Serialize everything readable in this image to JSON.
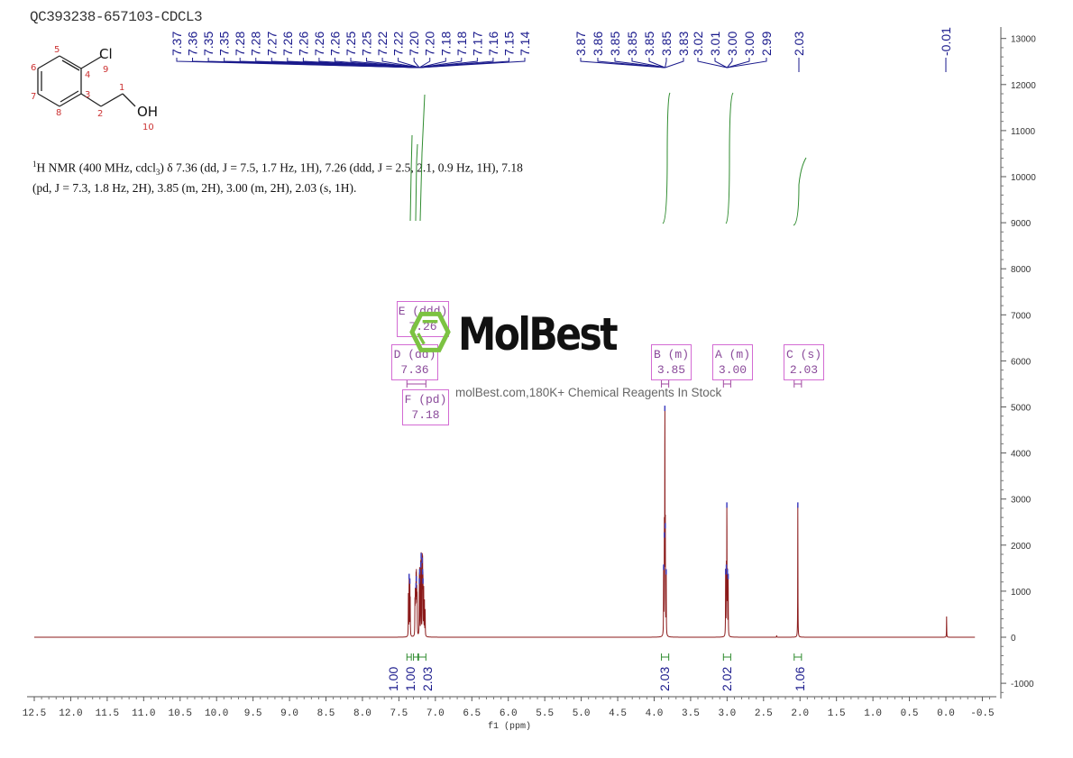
{
  "chart_data": {
    "type": "line",
    "title": "QC393238-657103-CDCL3",
    "xlabel": "f1 (ppm)",
    "ylabel": "",
    "xlim": [
      12.5,
      -0.5
    ],
    "ylim": [
      -1000,
      13000
    ],
    "x_ticks": [
      "12.5",
      "12.0",
      "11.5",
      "11.0",
      "10.5",
      "10.0",
      "9.5",
      "9.0",
      "8.5",
      "8.0",
      "7.5",
      "7.0",
      "6.5",
      "6.0",
      "5.5",
      "5.0",
      "4.5",
      "4.0",
      "3.5",
      "3.0",
      "2.5",
      "2.0",
      "1.5",
      "1.0",
      "0.5",
      "0.0",
      "-0.5"
    ],
    "y_ticks": [
      "13000",
      "12000",
      "11000",
      "10000",
      "9000",
      "8000",
      "7000",
      "6000",
      "5000",
      "4000",
      "3000",
      "2000",
      "1000",
      "0",
      "-1000"
    ],
    "line_color": "#8b1a1a",
    "peaks": [
      {
        "ppm": 7.37,
        "height": 900
      },
      {
        "ppm": 7.36,
        "height": 1300
      },
      {
        "ppm": 7.35,
        "height": 1200
      },
      {
        "ppm": 7.345,
        "height": 800
      },
      {
        "ppm": 7.28,
        "height": 700
      },
      {
        "ppm": 7.275,
        "height": 900
      },
      {
        "ppm": 7.27,
        "height": 800
      },
      {
        "ppm": 7.265,
        "height": 1100
      },
      {
        "ppm": 7.26,
        "height": 1250
      },
      {
        "ppm": 7.255,
        "height": 900
      },
      {
        "ppm": 7.25,
        "height": 800
      },
      {
        "ppm": 7.22,
        "height": 1200
      },
      {
        "ppm": 7.215,
        "height": 1400
      },
      {
        "ppm": 7.2,
        "height": 1550
      },
      {
        "ppm": 7.195,
        "height": 1750
      },
      {
        "ppm": 7.18,
        "height": 1650
      },
      {
        "ppm": 7.175,
        "height": 1400
      },
      {
        "ppm": 7.17,
        "height": 1200
      },
      {
        "ppm": 7.16,
        "height": 1000
      },
      {
        "ppm": 7.15,
        "height": 800
      },
      {
        "ppm": 7.14,
        "height": 600
      },
      {
        "ppm": 3.87,
        "height": 1500
      },
      {
        "ppm": 3.86,
        "height": 2200
      },
      {
        "ppm": 3.853,
        "height": 4950
      },
      {
        "ppm": 3.847,
        "height": 2400
      },
      {
        "ppm": 3.835,
        "height": 1400
      },
      {
        "ppm": 3.02,
        "height": 1400
      },
      {
        "ppm": 3.01,
        "height": 1500
      },
      {
        "ppm": 3.003,
        "height": 2850
      },
      {
        "ppm": 2.995,
        "height": 1400
      },
      {
        "ppm": 2.985,
        "height": 1300
      },
      {
        "ppm": 2.32,
        "height": 40
      },
      {
        "ppm": 2.03,
        "height": 2850
      },
      {
        "ppm": -0.01,
        "height": 450
      }
    ],
    "peak_labels": [
      {
        "group": [
          "7.37",
          "7.36",
          "7.35",
          "7.35",
          "7.28",
          "7.28",
          "7.27",
          "7.26",
          "7.26",
          "7.26",
          "7.26",
          "7.25",
          "7.25",
          "7.22",
          "7.22",
          "7.20",
          "7.20",
          "7.18",
          "7.18",
          "7.17",
          "7.16",
          "7.15",
          "7.14"
        ],
        "anchor_ppm": 7.22
      },
      {
        "group": [
          "3.87",
          "3.86",
          "3.85",
          "3.85",
          "3.85",
          "3.85",
          "3.83"
        ],
        "anchor_ppm": 3.85
      },
      {
        "group": [
          "3.02",
          "3.01",
          "3.00",
          "3.00",
          "2.99"
        ],
        "anchor_ppm": 3.0
      },
      {
        "group": [
          "2.03"
        ],
        "anchor_ppm": 2.03
      },
      {
        "group": [
          "-0.01"
        ],
        "anchor_ppm": -0.01
      }
    ],
    "integrals": [
      {
        "from": 7.39,
        "to": 7.33,
        "value": "1.00"
      },
      {
        "from": 7.3,
        "to": 7.24,
        "value": "1.00"
      },
      {
        "from": 7.23,
        "to": 7.13,
        "value": "2.03"
      },
      {
        "from": 3.9,
        "to": 3.8,
        "value": "2.03"
      },
      {
        "from": 3.05,
        "to": 2.95,
        "value": "2.02"
      },
      {
        "from": 2.08,
        "to": 1.98,
        "value": "1.06"
      }
    ],
    "multiplets": [
      {
        "label": "E (ddd)",
        "shift": "7.26"
      },
      {
        "label": "D (dd)",
        "shift": "7.36"
      },
      {
        "label": "F (pd)",
        "shift": "7.18"
      },
      {
        "label": "B (m)",
        "shift": "3.85"
      },
      {
        "label": "A (m)",
        "shift": "3.00"
      },
      {
        "label": "C (s)",
        "shift": "2.03"
      }
    ],
    "colors": {
      "spectrum": "#8b1a1a",
      "peak_labels": "#1a1a8c",
      "integral": "#2e8b2e",
      "multiplet_box": "#d36bd3"
    }
  },
  "description_html_parts": {
    "prefix": "1",
    "text": "H NMR (400 MHz, cdcl",
    "sub": "3",
    "rest": ") δ 7.36 (dd, J = 7.5, 1.7 Hz, 1H), 7.26 (ddd, J = 2.5, 2.1, 0.9 Hz, 1H), 7.18 (pd, J = 7.3, 1.8 Hz, 2H), 3.85 (m, 2H), 3.00 (m, 2H), 2.03 (s, 1H)."
  },
  "molecule": {
    "atoms": [
      "1",
      "2",
      "3",
      "4",
      "5",
      "6",
      "7",
      "8",
      "9",
      "10"
    ],
    "cl": "Cl",
    "oh": "OH"
  },
  "watermark": {
    "logo": "MolBest",
    "tagline": "molBest.com,180K+ Chemical Reagents In Stock"
  }
}
